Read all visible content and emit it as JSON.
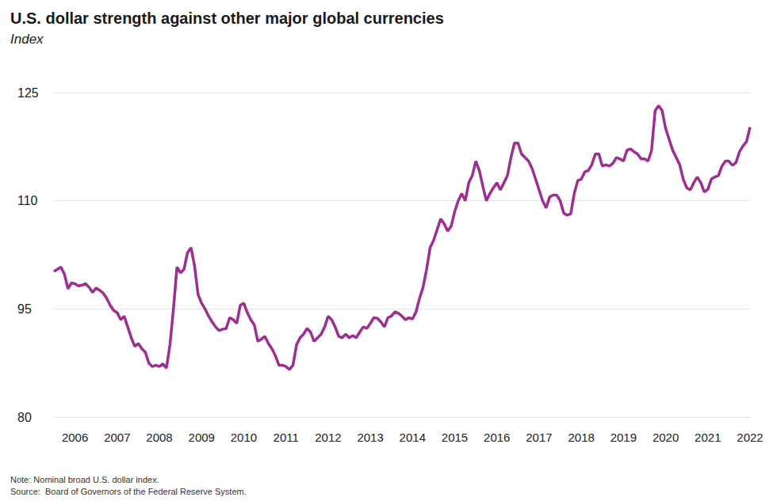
{
  "chart_data": {
    "type": "line",
    "title": "U.S. dollar strength against other major global currencies",
    "ylabel": "Index",
    "annotations": [
      "Note: Nominal broad U.S. dollar index.",
      "Source:  Board of Governors of the Federal Reserve System."
    ],
    "color": "#9c2f8f",
    "grid": true,
    "ylim": [
      80,
      125
    ],
    "yticks": [
      80,
      95,
      110,
      125
    ],
    "x": [
      null,
      null,
      null,
      null,
      null,
      null,
      "2006",
      null,
      null,
      null,
      null,
      null,
      null,
      null,
      null,
      null,
      null,
      null,
      "2007",
      null,
      null,
      null,
      null,
      null,
      null,
      null,
      null,
      null,
      null,
      null,
      "2008",
      null,
      null,
      null,
      null,
      null,
      null,
      null,
      null,
      null,
      null,
      null,
      "2009",
      null,
      null,
      null,
      null,
      null,
      null,
      null,
      null,
      null,
      null,
      null,
      "2010",
      null,
      null,
      null,
      null,
      null,
      null,
      null,
      null,
      null,
      null,
      null,
      "2011",
      null,
      null,
      null,
      null,
      null,
      null,
      null,
      null,
      null,
      null,
      null,
      "2012",
      null,
      null,
      null,
      null,
      null,
      null,
      null,
      null,
      null,
      null,
      null,
      "2013",
      null,
      null,
      null,
      null,
      null,
      null,
      null,
      null,
      null,
      null,
      null,
      "2014",
      null,
      null,
      null,
      null,
      null,
      null,
      null,
      null,
      null,
      null,
      null,
      "2015",
      null,
      null,
      null,
      null,
      null,
      null,
      null,
      null,
      null,
      null,
      null,
      "2016",
      null,
      null,
      null,
      null,
      null,
      null,
      null,
      null,
      null,
      null,
      null,
      "2017",
      null,
      null,
      null,
      null,
      null,
      null,
      null,
      null,
      null,
      null,
      null,
      "2018",
      null,
      null,
      null,
      null,
      null,
      null,
      null,
      null,
      null,
      null,
      null,
      "2019",
      null,
      null,
      null,
      null,
      null,
      null,
      null,
      null,
      null,
      null,
      null,
      "2020",
      null,
      null,
      null,
      null,
      null,
      null,
      null,
      null,
      null,
      null,
      null,
      "2021",
      null,
      null,
      null,
      null,
      null,
      null,
      null,
      null,
      null,
      null,
      null,
      "2022"
    ],
    "values": [
      100.2,
      100.5,
      100.8,
      99.8,
      97.8,
      98.6,
      98.5,
      98.2,
      98.3,
      98.5,
      98.0,
      97.3,
      97.9,
      97.6,
      97.2,
      96.5,
      95.5,
      94.8,
      94.5,
      93.5,
      94.0,
      92.5,
      91.0,
      89.8,
      90.2,
      89.5,
      89.0,
      87.5,
      87.0,
      87.2,
      87.0,
      87.4,
      86.8,
      90.0,
      95.0,
      100.8,
      100.0,
      100.5,
      102.8,
      103.5,
      101.0,
      97.0,
      95.8,
      95.0,
      94.0,
      93.2,
      92.5,
      92.0,
      92.2,
      92.3,
      93.8,
      93.5,
      93.0,
      95.5,
      95.8,
      94.5,
      93.5,
      92.8,
      90.5,
      90.8,
      91.2,
      90.2,
      89.5,
      88.5,
      87.2,
      87.2,
      87.0,
      86.6,
      87.2,
      90.0,
      91.0,
      91.5,
      92.3,
      91.8,
      90.5,
      91.0,
      91.5,
      92.5,
      94.0,
      93.5,
      92.5,
      91.2,
      91.0,
      91.5,
      91.0,
      91.3,
      91.0,
      91.8,
      92.5,
      92.3,
      93.0,
      93.8,
      93.7,
      93.2,
      92.5,
      93.8,
      94.0,
      94.6,
      94.4,
      94.0,
      93.5,
      93.8,
      93.6,
      94.6,
      96.5,
      98.0,
      100.5,
      103.5,
      104.5,
      106.0,
      107.5,
      106.8,
      105.8,
      106.5,
      108.5,
      110.0,
      111.0,
      110.0,
      112.5,
      113.5,
      115.5,
      114.2,
      112.0,
      110.0,
      111.0,
      111.8,
      112.5,
      111.5,
      112.5,
      113.5,
      116.0,
      118.0,
      118.0,
      116.5,
      116.0,
      115.5,
      114.5,
      113.0,
      111.5,
      110.0,
      109.0,
      110.5,
      110.8,
      110.8,
      110.0,
      108.3,
      108.0,
      108.2,
      111.0,
      112.8,
      113.0,
      114.0,
      114.2,
      115.0,
      116.5,
      116.5,
      114.8,
      115.0,
      114.8,
      115.2,
      116.0,
      115.8,
      115.5,
      117.0,
      117.2,
      116.8,
      116.5,
      115.8,
      115.8,
      115.5,
      117.0,
      122.5,
      123.2,
      122.5,
      120.0,
      118.5,
      117.0,
      116.0,
      115.0,
      113.0,
      111.8,
      111.5,
      112.5,
      113.3,
      112.5,
      111.2,
      111.6,
      113.0,
      113.3,
      113.5,
      114.8,
      115.5,
      115.5,
      114.9,
      115.3,
      116.8,
      117.6,
      118.2,
      120.2
    ]
  }
}
